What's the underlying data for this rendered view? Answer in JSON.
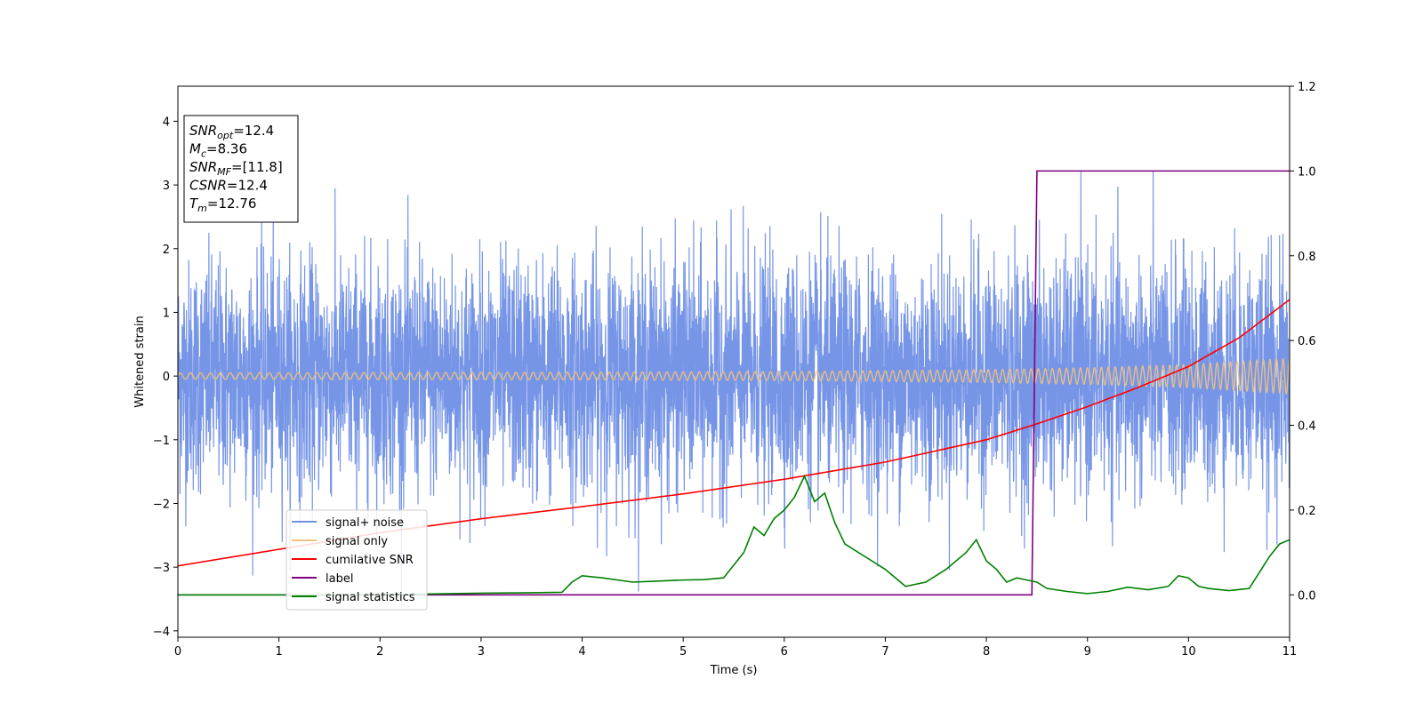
{
  "chart_data": {
    "type": "line",
    "title": "",
    "xlabel": "Time (s)",
    "ylabel": "Whitened strain",
    "y2label": "",
    "xlim": [
      0,
      11
    ],
    "ylim": [
      -4.1,
      4.55
    ],
    "y2lim": [
      -0.1,
      1.2
    ],
    "x_ticks": [
      0,
      1,
      2,
      3,
      4,
      5,
      6,
      7,
      8,
      9,
      10,
      11
    ],
    "y_ticks": [
      -4,
      -3,
      -2,
      -1,
      0,
      1,
      2,
      3,
      4
    ],
    "y_tick_labels": [
      "−4",
      "−3",
      "−2",
      "−1",
      "0",
      "1",
      "2",
      "3",
      "4"
    ],
    "y2_ticks": [
      0.0,
      0.2,
      0.4,
      0.6,
      0.8,
      1.0,
      1.2
    ],
    "y2_tick_labels": [
      "0.0",
      "0.2",
      "0.4",
      "0.6",
      "0.8",
      "1.0",
      "1.2"
    ],
    "grid": false,
    "legend_position": "lower-left",
    "series": [
      {
        "name": "signal+ noise",
        "axis": "left",
        "color": "#6f8fe6",
        "description_stats": {
          "approx_std": 0.9,
          "approx_max": 3.6,
          "approx_min": -3.65
        }
      },
      {
        "name": "signal only",
        "axis": "left",
        "color": "#f5c27a",
        "envelope": {
          "x": [
            0,
            2,
            4,
            6,
            8,
            9,
            10,
            11
          ],
          "amplitude": [
            0.05,
            0.055,
            0.06,
            0.07,
            0.1,
            0.13,
            0.18,
            0.28
          ]
        }
      },
      {
        "name": "cumilative SNR",
        "axis": "left",
        "color": "#ff0000",
        "x": [
          0,
          1,
          2,
          3,
          4,
          5,
          6,
          7,
          8,
          8.5,
          9,
          9.5,
          10,
          10.5,
          11
        ],
        "y": [
          -2.98,
          -2.72,
          -2.46,
          -2.24,
          -2.05,
          -1.85,
          -1.62,
          -1.35,
          -1.0,
          -0.75,
          -0.48,
          -0.18,
          0.15,
          0.6,
          1.2
        ]
      },
      {
        "name": "label",
        "axis": "right",
        "color": "#800080",
        "x": [
          0,
          8.45,
          8.5,
          11
        ],
        "y": [
          0.0,
          0.0,
          1.0,
          1.0
        ]
      },
      {
        "name": "signal statistics",
        "axis": "right",
        "color": "#008000",
        "x": [
          0,
          1,
          2,
          2.5,
          3,
          3.5,
          3.8,
          3.9,
          4.0,
          4.2,
          4.5,
          4.7,
          5.0,
          5.2,
          5.4,
          5.5,
          5.6,
          5.7,
          5.8,
          5.9,
          6.0,
          6.1,
          6.2,
          6.3,
          6.4,
          6.5,
          6.6,
          6.8,
          7.0,
          7.2,
          7.4,
          7.6,
          7.8,
          7.9,
          8.0,
          8.1,
          8.2,
          8.3,
          8.4,
          8.5,
          8.6,
          8.8,
          9.0,
          9.2,
          9.4,
          9.6,
          9.8,
          9.9,
          10.0,
          10.1,
          10.2,
          10.4,
          10.6,
          10.8,
          10.9,
          11.0
        ],
        "y": [
          0.0,
          0.0,
          0.0,
          0.002,
          0.004,
          0.005,
          0.006,
          0.03,
          0.045,
          0.04,
          0.03,
          0.032,
          0.035,
          0.036,
          0.04,
          0.07,
          0.1,
          0.16,
          0.14,
          0.18,
          0.2,
          0.23,
          0.28,
          0.22,
          0.24,
          0.17,
          0.12,
          0.09,
          0.06,
          0.02,
          0.03,
          0.06,
          0.1,
          0.13,
          0.08,
          0.06,
          0.03,
          0.04,
          0.035,
          0.03,
          0.015,
          0.008,
          0.003,
          0.008,
          0.018,
          0.012,
          0.02,
          0.045,
          0.04,
          0.02,
          0.015,
          0.01,
          0.015,
          0.09,
          0.12,
          0.13
        ]
      }
    ],
    "annotation_box": {
      "lines": [
        {
          "sym": "SNR",
          "sub": "opt",
          "value": "=12.4"
        },
        {
          "sym": "M",
          "sub": "c",
          "value": "=8.36"
        },
        {
          "sym": "SNR",
          "sub": "MF",
          "value": "=[11.8]"
        },
        {
          "sym": "CSNR",
          "sub": "",
          "value": "=12.4"
        },
        {
          "sym": "T",
          "sub": "m",
          "value": "=12.76"
        }
      ]
    }
  }
}
